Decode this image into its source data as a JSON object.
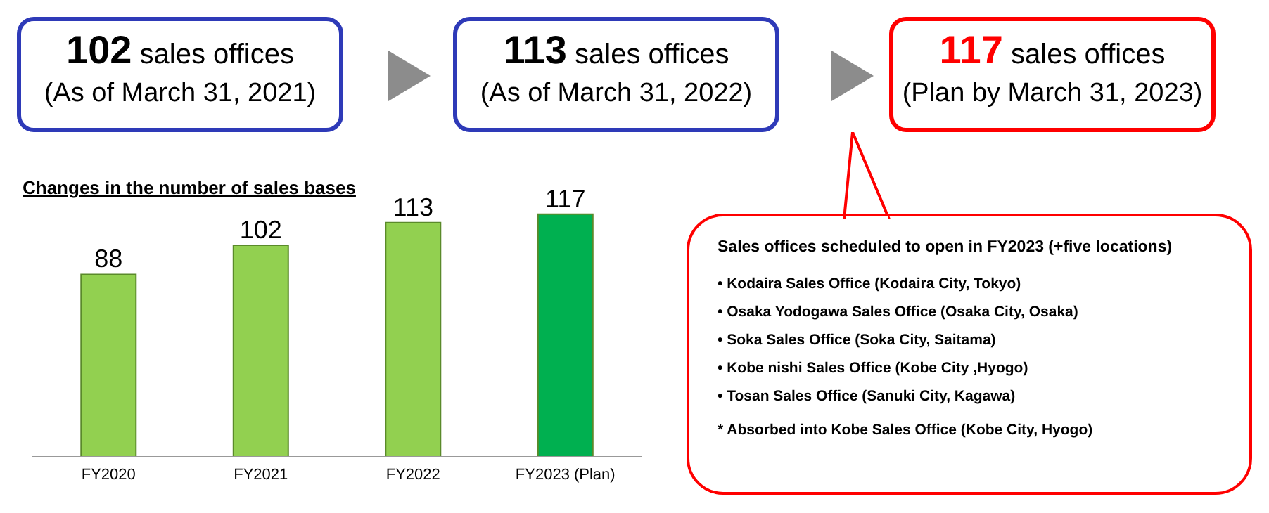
{
  "chart_data": {
    "type": "bar",
    "title": "Changes in the number of sales bases",
    "categories": [
      "FY2020",
      "FY2021",
      "FY2022",
      "FY2023 (Plan)"
    ],
    "values": [
      88,
      102,
      113,
      117
    ],
    "colors": [
      "#92d050",
      "#92d050",
      "#92d050",
      "#00b050"
    ],
    "data_labels": true,
    "tick_labels": "x",
    "grid": false,
    "legend": false,
    "annotations": [
      "102 sales offices",
      "(As of March 31, 2021)",
      "113 sales offices",
      "(As of March 31, 2022)",
      "117 sales offices",
      "(Plan by March 31, 2023)",
      "Sales offices scheduled to open in FY2023 (+five locations)",
      "• Kodaira Sales Office (Kodaira City, Tokyo)",
      "• Osaka Yodogawa Sales Office (Osaka City, Osaka)",
      "• Soka Sales Office (Soka City, Saitama)",
      "• Kobe nishi Sales Office (Kobe City ,Hyogo)",
      "• Tosan Sales Office (Sanuki City, Kagawa)",
      "* Absorbed into Kobe Sales Office (Kobe City, Hyogo)"
    ]
  }
}
